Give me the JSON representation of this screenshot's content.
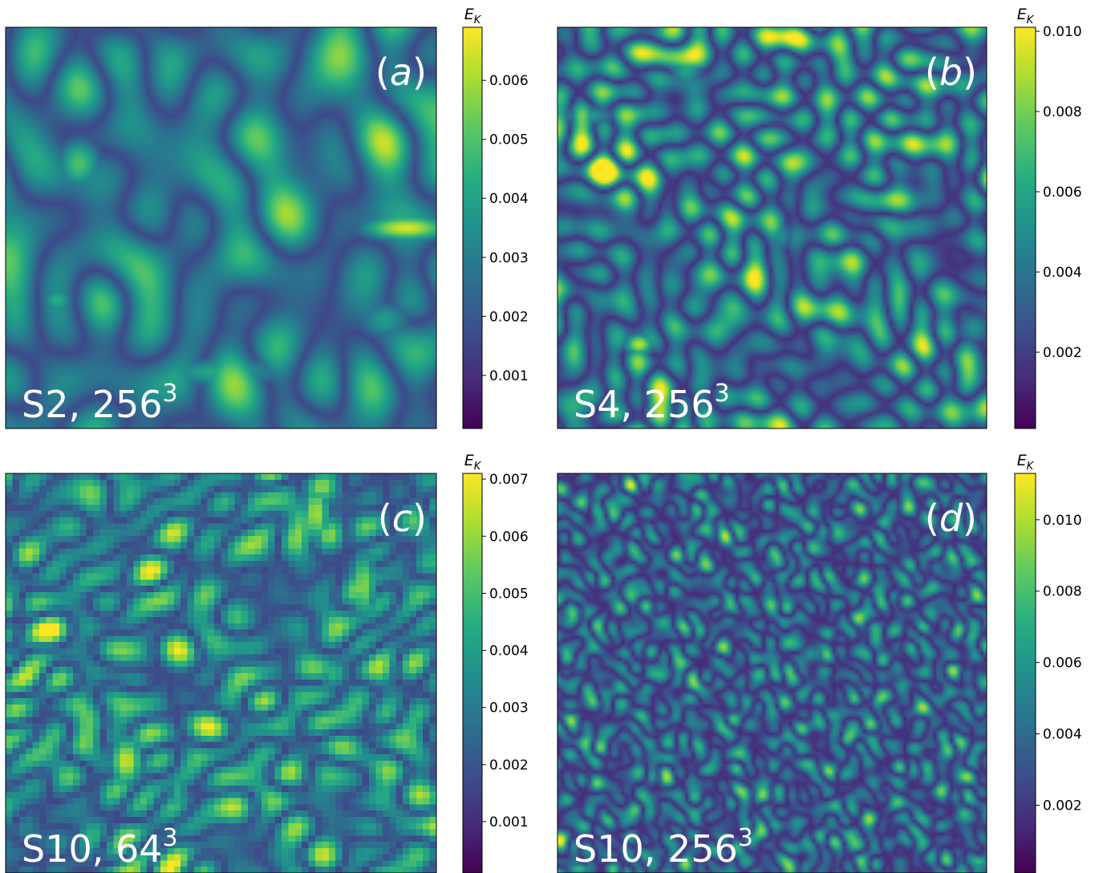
{
  "chart_data": [
    {
      "type": "heatmap",
      "panel_label": "(a)",
      "panel_label_letter": "a",
      "case_label": "S2, 256",
      "case_exponent": "3",
      "colorbar": {
        "title": "E",
        "title_subscript": "K",
        "range": [
          0.0001,
          0.0069
        ],
        "ticks": [
          0.006,
          0.005,
          0.004,
          0.003,
          0.002,
          0.001
        ],
        "tick_labels": [
          "0.006",
          "0.005",
          "0.004",
          "0.003",
          "0.002",
          "0.001"
        ],
        "colormap": "viridis"
      },
      "field": {
        "grid": 256,
        "texture": "smooth",
        "background_level": 0.22,
        "features": [
          {
            "x": 0.93,
            "y": 0.5,
            "rx": 0.08,
            "ry": 0.025,
            "value": 0.95
          },
          {
            "x": 0.17,
            "y": 0.34,
            "rx": 0.04,
            "ry": 0.05,
            "value": 0.72
          },
          {
            "x": 0.12,
            "y": 0.68,
            "rx": 0.03,
            "ry": 0.03,
            "value": 0.62
          },
          {
            "x": 0.88,
            "y": 0.73,
            "rx": 0.05,
            "ry": 0.04,
            "value": 0.55
          },
          {
            "x": 0.5,
            "y": 0.86,
            "rx": 0.12,
            "ry": 0.03,
            "value": 0.6
          }
        ]
      }
    },
    {
      "type": "heatmap",
      "panel_label": "(b)",
      "panel_label_letter": "b",
      "case_label": "S4, 256",
      "case_exponent": "3",
      "colorbar": {
        "title": "E",
        "title_subscript": "K",
        "range": [
          0.0001,
          0.0101
        ],
        "ticks": [
          0.01,
          0.008,
          0.006,
          0.004,
          0.002
        ],
        "tick_labels": [
          "0.010",
          "0.008",
          "0.006",
          "0.004",
          "0.002"
        ],
        "colormap": "viridis"
      },
      "field": {
        "grid": 256,
        "texture": "medium",
        "background_level": 0.14,
        "features": [
          {
            "x": 0.19,
            "y": 0.79,
            "rx": 0.025,
            "ry": 0.02,
            "value": 0.92
          },
          {
            "x": 0.3,
            "y": 0.1,
            "rx": 0.03,
            "ry": 0.04,
            "value": 0.6
          },
          {
            "x": 0.07,
            "y": 0.22,
            "rx": 0.05,
            "ry": 0.02,
            "value": 0.55
          },
          {
            "x": 0.97,
            "y": 0.75,
            "rx": 0.03,
            "ry": 0.03,
            "value": 0.5
          },
          {
            "x": 0.52,
            "y": 0.52,
            "rx": 0.02,
            "ry": 0.03,
            "value": 0.5
          }
        ]
      }
    },
    {
      "type": "heatmap",
      "panel_label": "(c)",
      "panel_label_letter": "c",
      "case_label": "S10, 64",
      "case_exponent": "3",
      "colorbar": {
        "title": "E",
        "title_subscript": "K",
        "range": [
          0.0001,
          0.0071
        ],
        "ticks": [
          0.007,
          0.006,
          0.005,
          0.004,
          0.003,
          0.002,
          0.001
        ],
        "tick_labels": [
          "0.007",
          "0.006",
          "0.005",
          "0.004",
          "0.003",
          "0.002",
          "0.001"
        ],
        "colormap": "viridis"
      },
      "field": {
        "grid": 64,
        "texture": "blocky",
        "background_level": 0.22,
        "features": [
          {
            "x": 0.28,
            "y": 0.72,
            "rx": 0.03,
            "ry": 0.05,
            "value": 0.93
          },
          {
            "x": 0.72,
            "y": 0.1,
            "rx": 0.025,
            "ry": 0.06,
            "value": 0.88
          },
          {
            "x": 0.83,
            "y": 0.28,
            "rx": 0.025,
            "ry": 0.07,
            "value": 0.82
          },
          {
            "x": 0.76,
            "y": 0.5,
            "rx": 0.03,
            "ry": 0.03,
            "value": 0.65
          },
          {
            "x": 0.4,
            "y": 0.8,
            "rx": 0.02,
            "ry": 0.06,
            "value": 0.6
          }
        ]
      }
    },
    {
      "type": "heatmap",
      "panel_label": "(d)",
      "panel_label_letter": "d",
      "case_label": "S10, 256",
      "case_exponent": "3",
      "colorbar": {
        "title": "E",
        "title_subscript": "K",
        "range": [
          0.0001,
          0.0113
        ],
        "ticks": [
          0.01,
          0.008,
          0.006,
          0.004,
          0.002
        ],
        "tick_labels": [
          "0.010",
          "0.008",
          "0.006",
          "0.004",
          "0.002"
        ],
        "colormap": "viridis"
      },
      "field": {
        "grid": 256,
        "texture": "fine",
        "background_level": 0.12,
        "features": [
          {
            "x": 0.95,
            "y": 0.86,
            "rx": 0.02,
            "ry": 0.015,
            "value": 0.6
          },
          {
            "x": 0.05,
            "y": 0.99,
            "rx": 0.02,
            "ry": 0.01,
            "value": 0.7
          },
          {
            "x": 0.98,
            "y": 0.97,
            "rx": 0.02,
            "ry": 0.01,
            "value": 0.7
          },
          {
            "x": 0.6,
            "y": 0.45,
            "rx": 0.03,
            "ry": 0.02,
            "value": 0.45
          }
        ]
      }
    }
  ]
}
